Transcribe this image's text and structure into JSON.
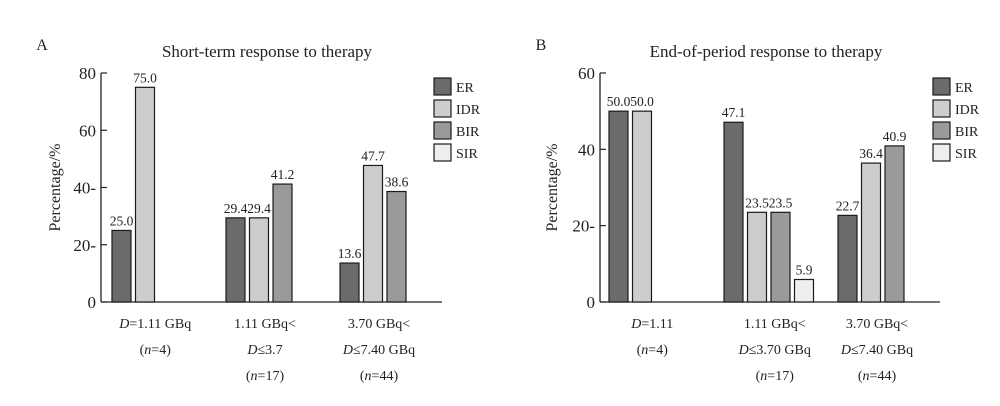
{
  "chart_data": [
    {
      "panel_label": "A",
      "type": "bar",
      "title": "Short-term response to therapy",
      "xlabel": "",
      "ylabel": "Percentage/%",
      "ylim": [
        0,
        80
      ],
      "yticks": [
        0,
        20,
        40,
        60,
        80
      ],
      "ytick_labels": [
        "0",
        "20-",
        "40-",
        "60",
        "80"
      ],
      "categories": [
        [
          "D=1.11 GBq",
          "(n=4)"
        ],
        [
          "1.11 GBq<",
          "D≤3.7",
          "(n=17)"
        ],
        [
          "3.70 GBq<",
          "D≤7.40 GBq",
          "(n=44)"
        ]
      ],
      "series": [
        {
          "name": "ER",
          "values": [
            25.0,
            29.4,
            13.6
          ]
        },
        {
          "name": "IDR",
          "values": [
            75.0,
            29.4,
            47.7
          ]
        },
        {
          "name": "BIR",
          "values": [
            null,
            41.2,
            38.6
          ]
        }
      ],
      "legend": [
        "ER",
        "IDR",
        "BIR",
        "SIR"
      ],
      "legend_position": "right",
      "grid": false
    },
    {
      "panel_label": "B",
      "type": "bar",
      "title": "End-of-period response to therapy",
      "xlabel": "",
      "ylabel": "Percentage/%",
      "ylim": [
        0,
        60
      ],
      "yticks": [
        0,
        20,
        40,
        60
      ],
      "ytick_labels": [
        "0",
        "20-",
        "40",
        "60"
      ],
      "categories": [
        [
          "D=1.11",
          "(n=4)"
        ],
        [
          "1.11 GBq<",
          "D≤3.70 GBq",
          "(n=17)"
        ],
        [
          "3.70 GBq<",
          "D≤7.40 GBq",
          "(n=44)"
        ]
      ],
      "series": [
        {
          "name": "ER",
          "values": [
            50.0,
            47.1,
            22.7
          ]
        },
        {
          "name": "IDR",
          "values": [
            50.0,
            23.5,
            36.4
          ]
        },
        {
          "name": "BIR",
          "values": [
            null,
            23.5,
            40.9
          ]
        },
        {
          "name": "SIR",
          "values": [
            null,
            5.9,
            null
          ]
        }
      ],
      "legend": [
        "ER",
        "IDR",
        "BIR",
        "SIR"
      ],
      "legend_position": "right",
      "grid": false
    }
  ],
  "colors": {
    "ER": "#6b6b6b",
    "IDR": "#cdcdcd",
    "BIR": "#9a9a9a",
    "SIR": "#eeeeee",
    "edge": "#1a1a1a"
  }
}
